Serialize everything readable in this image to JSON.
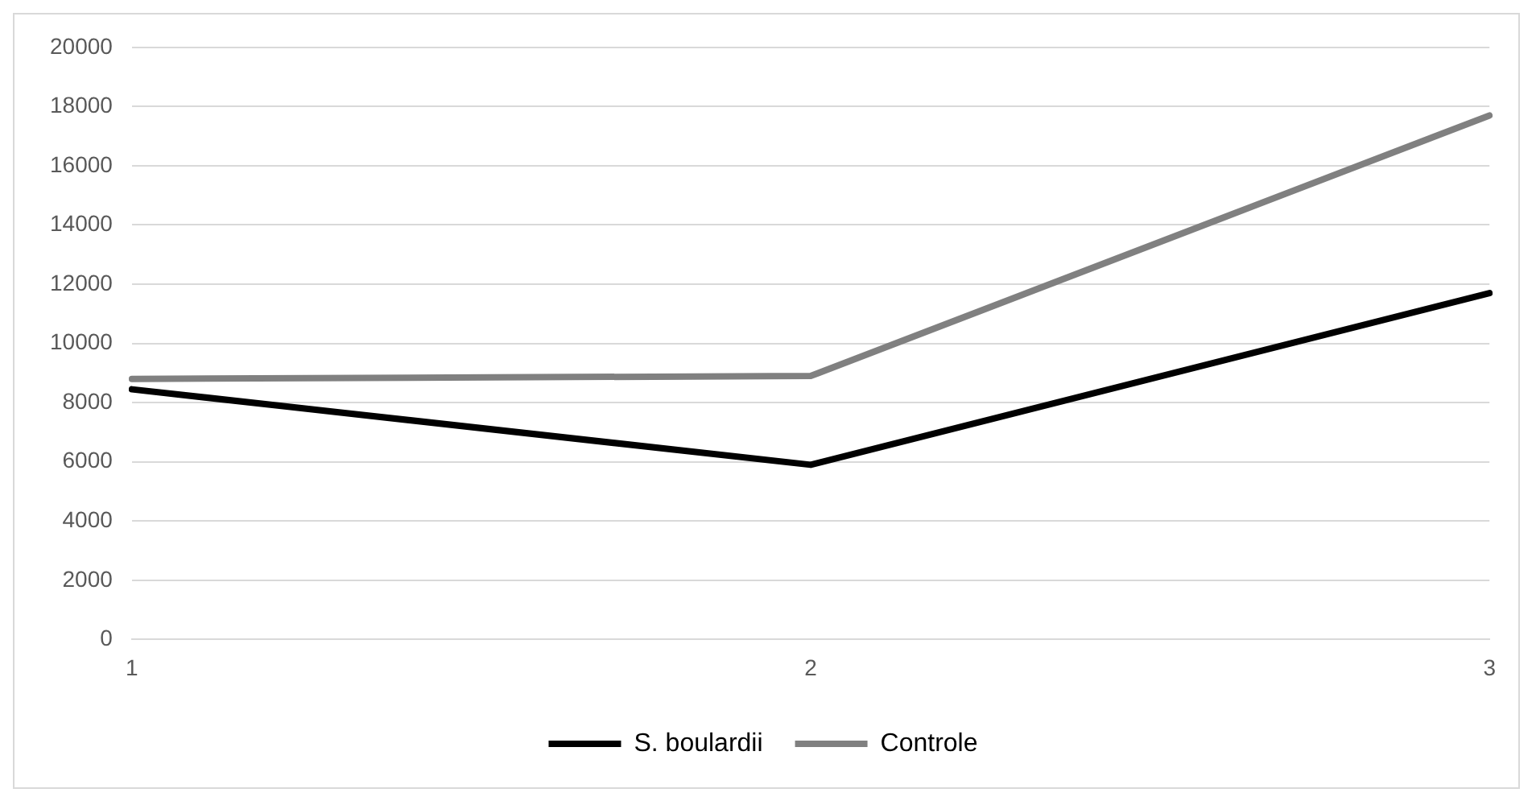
{
  "chart_data": {
    "type": "line",
    "categories": [
      "1",
      "2",
      "3"
    ],
    "series": [
      {
        "name": "S. boulardii",
        "color": "#000000",
        "values": [
          8450,
          5900,
          11700
        ]
      },
      {
        "name": "Controle",
        "color": "#808080",
        "values": [
          8800,
          8900,
          17700
        ]
      }
    ],
    "ylim": [
      0,
      20000
    ],
    "yticks": [
      0,
      2000,
      4000,
      6000,
      8000,
      10000,
      12000,
      14000,
      16000,
      18000,
      20000
    ],
    "grid": "y",
    "legend": "bottom",
    "marker": "none",
    "line_style": "solid"
  }
}
